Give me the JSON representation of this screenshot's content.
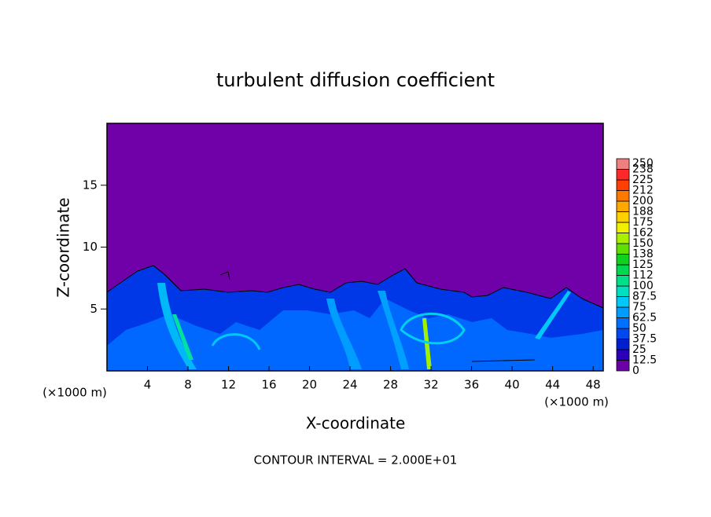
{
  "chart_data": {
    "type": "contour",
    "title": "turbulent diffusion coefficient",
    "x_label": "X-coordinate",
    "y_label": "Z-coordinate",
    "x_unit_label": "(×1000 m)",
    "y_unit_label": "(×1000 m)",
    "footer": "CONTOUR INTERVAL = 2.000E+01",
    "xlim": [
      0,
      49
    ],
    "xticks": [
      4,
      8,
      12,
      16,
      20,
      24,
      28,
      32,
      36,
      40,
      44,
      48
    ],
    "ylim": [
      0,
      20
    ],
    "yticks": [
      5,
      10,
      15
    ],
    "colorbar": {
      "levels": [
        0,
        12.5,
        25,
        37.5,
        50,
        62.5,
        75,
        87.5,
        100,
        {
          "value": 112.5,
          "label": "112"
        },
        125,
        {
          "value": 137.5,
          "label": "138"
        },
        150,
        {
          "value": 162.5,
          "label": "162"
        },
        175,
        {
          "value": 187.5,
          "label": "188"
        },
        200,
        {
          "value": 212.5,
          "label": "212"
        },
        225,
        {
          "value": 237.5,
          "label": "238"
        },
        250
      ],
      "colors": [
        "#6a00a8",
        "#2a00b8",
        "#0020d0",
        "#0048f0",
        "#0070ff",
        "#009cff",
        "#00c8f8",
        "#00e0c0",
        "#00e088",
        "#00d850",
        "#10d020",
        "#60e000",
        "#a8f000",
        "#f0f000",
        "#ffd000",
        "#ffa800",
        "#ff7800",
        "#ff4000",
        "#ff2828",
        "#f08080"
      ]
    }
  }
}
